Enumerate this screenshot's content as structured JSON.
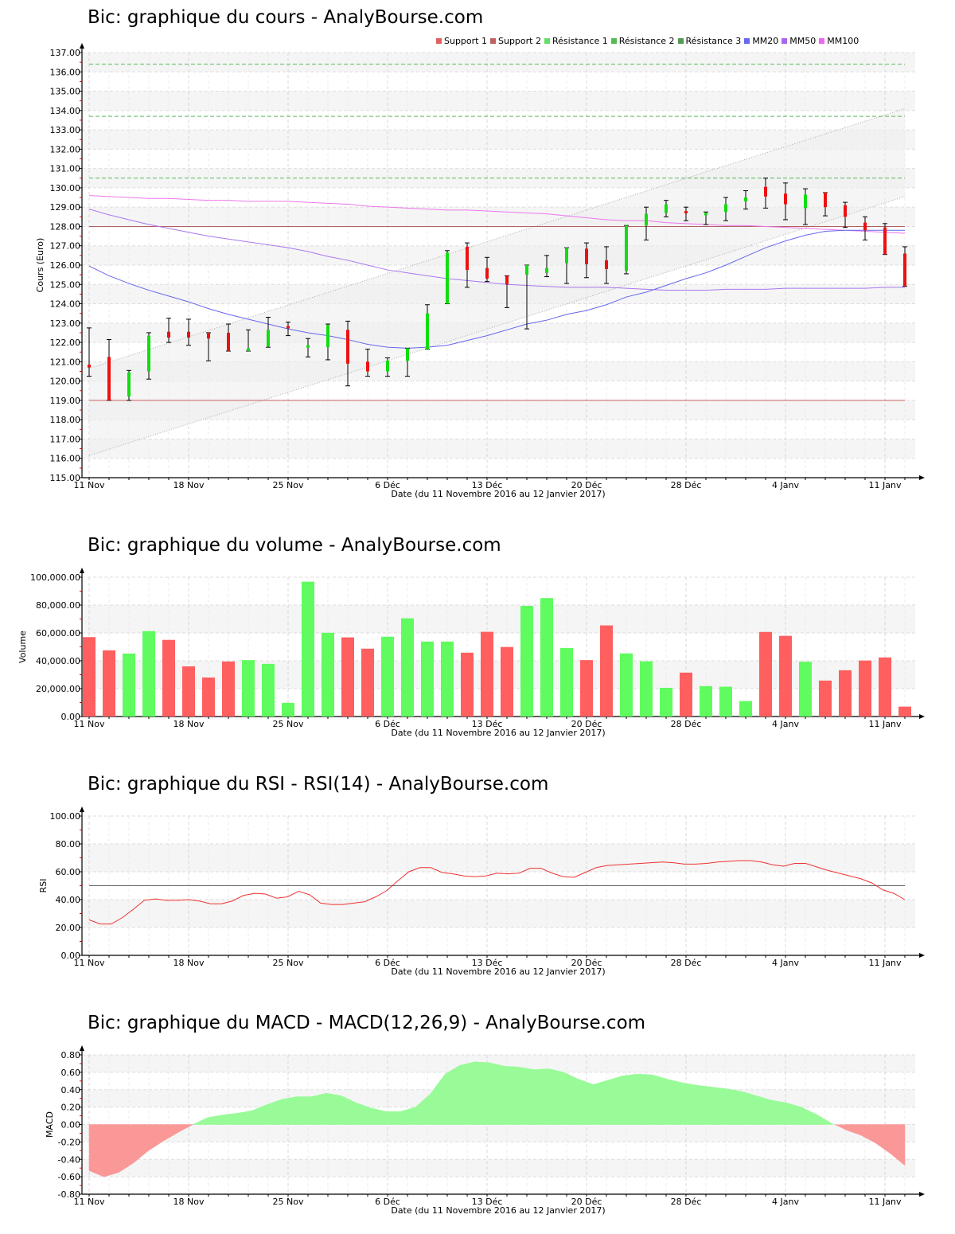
{
  "titles": {
    "price": "Bic: graphique du cours - AnalyBourse.com",
    "volume": "Bic: graphique du volume - AnalyBourse.com",
    "rsi": "Bic: graphique du RSI - RSI(14) - AnalyBourse.com",
    "macd": "Bic: graphique du MACD - MACD(12,26,9) - AnalyBourse.com"
  },
  "legend": [
    {
      "label": "Support 1",
      "color": "#e06060"
    },
    {
      "label": "Support 2",
      "color": "#c06060"
    },
    {
      "label": "Résistance 1",
      "color": "#66dd66"
    },
    {
      "label": "Résistance 2",
      "color": "#55bb55"
    },
    {
      "label": "Résistance 3",
      "color": "#559955"
    },
    {
      "label": "MM20",
      "color": "#6666ee"
    },
    {
      "label": "MM50",
      "color": "#aa66ee"
    },
    {
      "label": "MM100",
      "color": "#ee66ee"
    }
  ],
  "xaxis": {
    "label": "Date (du 11 Novembre 2016 au 12 Janvier 2017)",
    "ticks": [
      {
        "index": 0,
        "label": "11 Nov"
      },
      {
        "index": 5,
        "label": "18 Nov"
      },
      {
        "index": 10,
        "label": "25 Nov"
      },
      {
        "index": 15,
        "label": "6 Déc"
      },
      {
        "index": 20,
        "label": "13 Déc"
      },
      {
        "index": 25,
        "label": "20 Déc"
      },
      {
        "index": 30,
        "label": "28 Déc"
      },
      {
        "index": 35,
        "label": "4 Janv"
      },
      {
        "index": 40,
        "label": "11 Janv"
      }
    ]
  },
  "chart_data": [
    {
      "type": "candlestick",
      "title": "Bic: graphique du cours - AnalyBourse.com",
      "xlabel": "Date (du 11 Novembre 2016 au 12 Janvier 2017)",
      "ylabel": "Cours (Euro)",
      "ylim": [
        115,
        137
      ],
      "yticks": [
        "115.00",
        "116.00",
        "117.00",
        "118.00",
        "119.00",
        "120.00",
        "121.00",
        "122.00",
        "123.00",
        "124.00",
        "125.00",
        "126.00",
        "127.00",
        "128.00",
        "129.00",
        "130.00",
        "131.00",
        "132.00",
        "133.00",
        "134.00",
        "135.00",
        "136.00",
        "137.00"
      ],
      "candles": [
        {
          "o": 120.85,
          "h": 122.75,
          "l": 120.25,
          "c": 120.7
        },
        {
          "o": 121.25,
          "h": 122.15,
          "l": 119.0,
          "c": 119.0
        },
        {
          "o": 119.2,
          "h": 120.55,
          "l": 119.0,
          "c": 120.45
        },
        {
          "o": 120.5,
          "h": 122.5,
          "l": 120.1,
          "c": 122.35
        },
        {
          "o": 122.55,
          "h": 123.25,
          "l": 122.0,
          "c": 122.25
        },
        {
          "o": 122.55,
          "h": 123.2,
          "l": 121.85,
          "c": 122.25
        },
        {
          "o": 122.5,
          "h": 122.5,
          "l": 121.05,
          "c": 122.2
        },
        {
          "o": 122.5,
          "h": 122.95,
          "l": 121.55,
          "c": 121.55
        },
        {
          "o": 121.55,
          "h": 122.65,
          "l": 121.55,
          "c": 121.7
        },
        {
          "o": 121.8,
          "h": 123.3,
          "l": 121.75,
          "c": 122.65
        },
        {
          "o": 122.85,
          "h": 123.05,
          "l": 122.35,
          "c": 122.75
        },
        {
          "o": 121.75,
          "h": 122.2,
          "l": 121.25,
          "c": 121.85
        },
        {
          "o": 121.75,
          "h": 122.95,
          "l": 121.1,
          "c": 122.9
        },
        {
          "o": 122.65,
          "h": 123.1,
          "l": 119.75,
          "c": 120.9
        },
        {
          "o": 121.0,
          "h": 121.65,
          "l": 120.25,
          "c": 120.5
        },
        {
          "o": 120.5,
          "h": 121.2,
          "l": 120.25,
          "c": 121.05
        },
        {
          "o": 121.05,
          "h": 121.7,
          "l": 120.25,
          "c": 121.7
        },
        {
          "o": 121.65,
          "h": 123.95,
          "l": 121.65,
          "c": 123.5
        },
        {
          "o": 124.0,
          "h": 126.75,
          "l": 124.0,
          "c": 126.65
        },
        {
          "o": 126.95,
          "h": 127.15,
          "l": 124.85,
          "c": 125.75
        },
        {
          "o": 125.85,
          "h": 126.4,
          "l": 125.15,
          "c": 125.3
        },
        {
          "o": 125.45,
          "h": 125.45,
          "l": 123.8,
          "c": 125.0
        },
        {
          "o": 125.5,
          "h": 126.0,
          "l": 122.7,
          "c": 126.0
        },
        {
          "o": 125.6,
          "h": 126.5,
          "l": 125.4,
          "c": 125.85
        },
        {
          "o": 126.1,
          "h": 126.9,
          "l": 125.05,
          "c": 126.9
        },
        {
          "o": 126.85,
          "h": 127.15,
          "l": 125.35,
          "c": 126.05
        },
        {
          "o": 126.25,
          "h": 126.95,
          "l": 125.05,
          "c": 125.8
        },
        {
          "o": 125.7,
          "h": 128.05,
          "l": 125.55,
          "c": 128.05
        },
        {
          "o": 128.05,
          "h": 129.0,
          "l": 127.3,
          "c": 128.65
        },
        {
          "o": 128.7,
          "h": 129.35,
          "l": 128.5,
          "c": 129.15
        },
        {
          "o": 128.8,
          "h": 129.0,
          "l": 128.3,
          "c": 128.75
        },
        {
          "o": 128.6,
          "h": 128.75,
          "l": 128.1,
          "c": 128.7
        },
        {
          "o": 128.75,
          "h": 129.5,
          "l": 128.3,
          "c": 129.15
        },
        {
          "o": 129.3,
          "h": 129.85,
          "l": 128.9,
          "c": 129.5
        },
        {
          "o": 130.05,
          "h": 130.5,
          "l": 128.95,
          "c": 129.55
        },
        {
          "o": 129.7,
          "h": 130.25,
          "l": 128.35,
          "c": 129.15
        },
        {
          "o": 128.95,
          "h": 129.95,
          "l": 128.1,
          "c": 129.65
        },
        {
          "o": 129.75,
          "h": 129.75,
          "l": 128.55,
          "c": 129.0
        },
        {
          "o": 129.1,
          "h": 129.25,
          "l": 127.95,
          "c": 128.5
        },
        {
          "o": 128.2,
          "h": 128.5,
          "l": 127.3,
          "c": 127.8
        },
        {
          "o": 127.95,
          "h": 128.15,
          "l": 126.55,
          "c": 126.55
        },
        {
          "o": 126.6,
          "h": 126.95,
          "l": 124.9,
          "c": 124.9
        }
      ],
      "lines": {
        "support1": 119.0,
        "support2": 128.0,
        "resistance1": 130.5,
        "resistance2": 133.7,
        "resistance3": 136.4
      },
      "mm20": [
        125.95,
        125.45,
        125.05,
        124.7,
        124.4,
        124.1,
        123.75,
        123.45,
        123.2,
        122.95,
        122.7,
        122.5,
        122.35,
        122.15,
        121.9,
        121.75,
        121.7,
        121.75,
        121.85,
        122.1,
        122.35,
        122.65,
        122.95,
        123.15,
        123.45,
        123.65,
        123.95,
        124.35,
        124.6,
        124.95,
        125.3,
        125.6,
        126.0,
        126.45,
        126.9,
        127.25,
        127.55,
        127.75,
        127.8,
        127.8,
        127.8,
        127.8
      ],
      "mm50": [
        128.9,
        128.6,
        128.35,
        128.1,
        127.9,
        127.7,
        127.5,
        127.35,
        127.2,
        127.05,
        126.9,
        126.7,
        126.45,
        126.25,
        126.0,
        125.75,
        125.6,
        125.45,
        125.3,
        125.2,
        125.1,
        125.0,
        124.95,
        124.9,
        124.85,
        124.85,
        124.85,
        124.8,
        124.75,
        124.7,
        124.7,
        124.7,
        124.75,
        124.75,
        124.75,
        124.8,
        124.8,
        124.8,
        124.8,
        124.8,
        124.85,
        124.85
      ],
      "mm100": [
        129.6,
        129.55,
        129.5,
        129.45,
        129.45,
        129.4,
        129.35,
        129.35,
        129.3,
        129.3,
        129.3,
        129.25,
        129.2,
        129.15,
        129.05,
        129.0,
        128.95,
        128.9,
        128.85,
        128.85,
        128.8,
        128.75,
        128.7,
        128.65,
        128.55,
        128.45,
        128.35,
        128.3,
        128.3,
        128.2,
        128.15,
        128.1,
        128.05,
        128.05,
        128.0,
        127.95,
        127.9,
        127.85,
        127.8,
        127.75,
        127.7,
        127.65
      ],
      "channel": {
        "upper_start": 120.65,
        "upper_end": 134.1,
        "lower_start": 116.15,
        "lower_end": 129.55
      }
    },
    {
      "type": "bar",
      "title": "Bic: graphique du volume - AnalyBourse.com",
      "xlabel": "Date (du 11 Novembre 2016 au 12 Janvier 2017)",
      "ylabel": "Volume",
      "ylim": [
        0,
        100000
      ],
      "yticks": [
        "0.00",
        "20,000.00",
        "40,000.00",
        "60,000.00",
        "80,000.00",
        "100,000.00"
      ],
      "values": [
        57000,
        47500,
        45200,
        61300,
        55000,
        36000,
        28000,
        39500,
        40500,
        37800,
        9800,
        96800,
        60100,
        56800,
        48700,
        57300,
        70500,
        53800,
        53800,
        45800,
        60800,
        49900,
        79400,
        85000,
        49200,
        40500,
        65400,
        45300,
        39600,
        20600,
        31500,
        21800,
        21400,
        11100,
        60700,
        57900,
        39300,
        25800,
        33200,
        40200,
        42400,
        7100
      ],
      "colors": [
        "r",
        "r",
        "g",
        "g",
        "r",
        "r",
        "r",
        "r",
        "g",
        "g",
        "g",
        "g",
        "g",
        "r",
        "r",
        "g",
        "g",
        "g",
        "g",
        "r",
        "r",
        "r",
        "g",
        "g",
        "g",
        "r",
        "r",
        "g",
        "g",
        "g",
        "r",
        "g",
        "g",
        "g",
        "r",
        "r",
        "g",
        "r",
        "r",
        "r",
        "r",
        "r"
      ]
    },
    {
      "type": "line",
      "title": "Bic: graphique du RSI - RSI(14) - AnalyBourse.com",
      "xlabel": "Date (du 11 Novembre 2016 au 12 Janvier 2017)",
      "ylabel": "RSI",
      "ylim": [
        0,
        100
      ],
      "yticks": [
        "0.00",
        "20.00",
        "40.00",
        "60.00",
        "80.00",
        "100.00"
      ],
      "reference_line": 50,
      "values": [
        25.5,
        22.5,
        22.5,
        27,
        33,
        39.5,
        40.5,
        39.5,
        39.5,
        40,
        39,
        37,
        37,
        39,
        43,
        44.5,
        44,
        41,
        42,
        46,
        43.5,
        37.5,
        36.5,
        36.5,
        37.5,
        38.5,
        42,
        46.5,
        53.5,
        60,
        63,
        63,
        59.5,
        58.5,
        57,
        56.5,
        57,
        59,
        58.5,
        59,
        62.5,
        62.5,
        59,
        56.5,
        56,
        59.5,
        63,
        64.5,
        65,
        65.5,
        66,
        66.5,
        67,
        66.5,
        65.5,
        65.5,
        66,
        67,
        67.5,
        68,
        68,
        67,
        65,
        64,
        66,
        66,
        63.5,
        61,
        59,
        57,
        55,
        52,
        47,
        44.5,
        40
      ]
    },
    {
      "type": "area",
      "title": "Bic: graphique du MACD - MACD(12,26,9) - AnalyBourse.com",
      "xlabel": "Date (du 11 Novembre 2016 au 12 Janvier 2017)",
      "ylabel": "MACD",
      "ylim": [
        -0.8,
        0.8
      ],
      "yticks": [
        "-0.80",
        "-0.60",
        "-0.40",
        "-0.20",
        "0.00",
        "0.20",
        "0.40",
        "0.60",
        "0.80"
      ],
      "values": [
        -0.53,
        -0.6,
        -0.55,
        -0.44,
        -0.3,
        -0.19,
        -0.09,
        0.0,
        0.08,
        0.11,
        0.13,
        0.16,
        0.23,
        0.29,
        0.32,
        0.32,
        0.36,
        0.33,
        0.25,
        0.19,
        0.15,
        0.15,
        0.2,
        0.35,
        0.58,
        0.68,
        0.72,
        0.71,
        0.67,
        0.66,
        0.63,
        0.64,
        0.6,
        0.52,
        0.46,
        0.51,
        0.56,
        0.58,
        0.57,
        0.52,
        0.48,
        0.45,
        0.43,
        0.41,
        0.38,
        0.33,
        0.28,
        0.25,
        0.2,
        0.12,
        0.02,
        -0.06,
        -0.12,
        -0.21,
        -0.33,
        -0.47
      ],
      "positive_color": "#98fb98",
      "negative_color": "#fa9898"
    }
  ]
}
